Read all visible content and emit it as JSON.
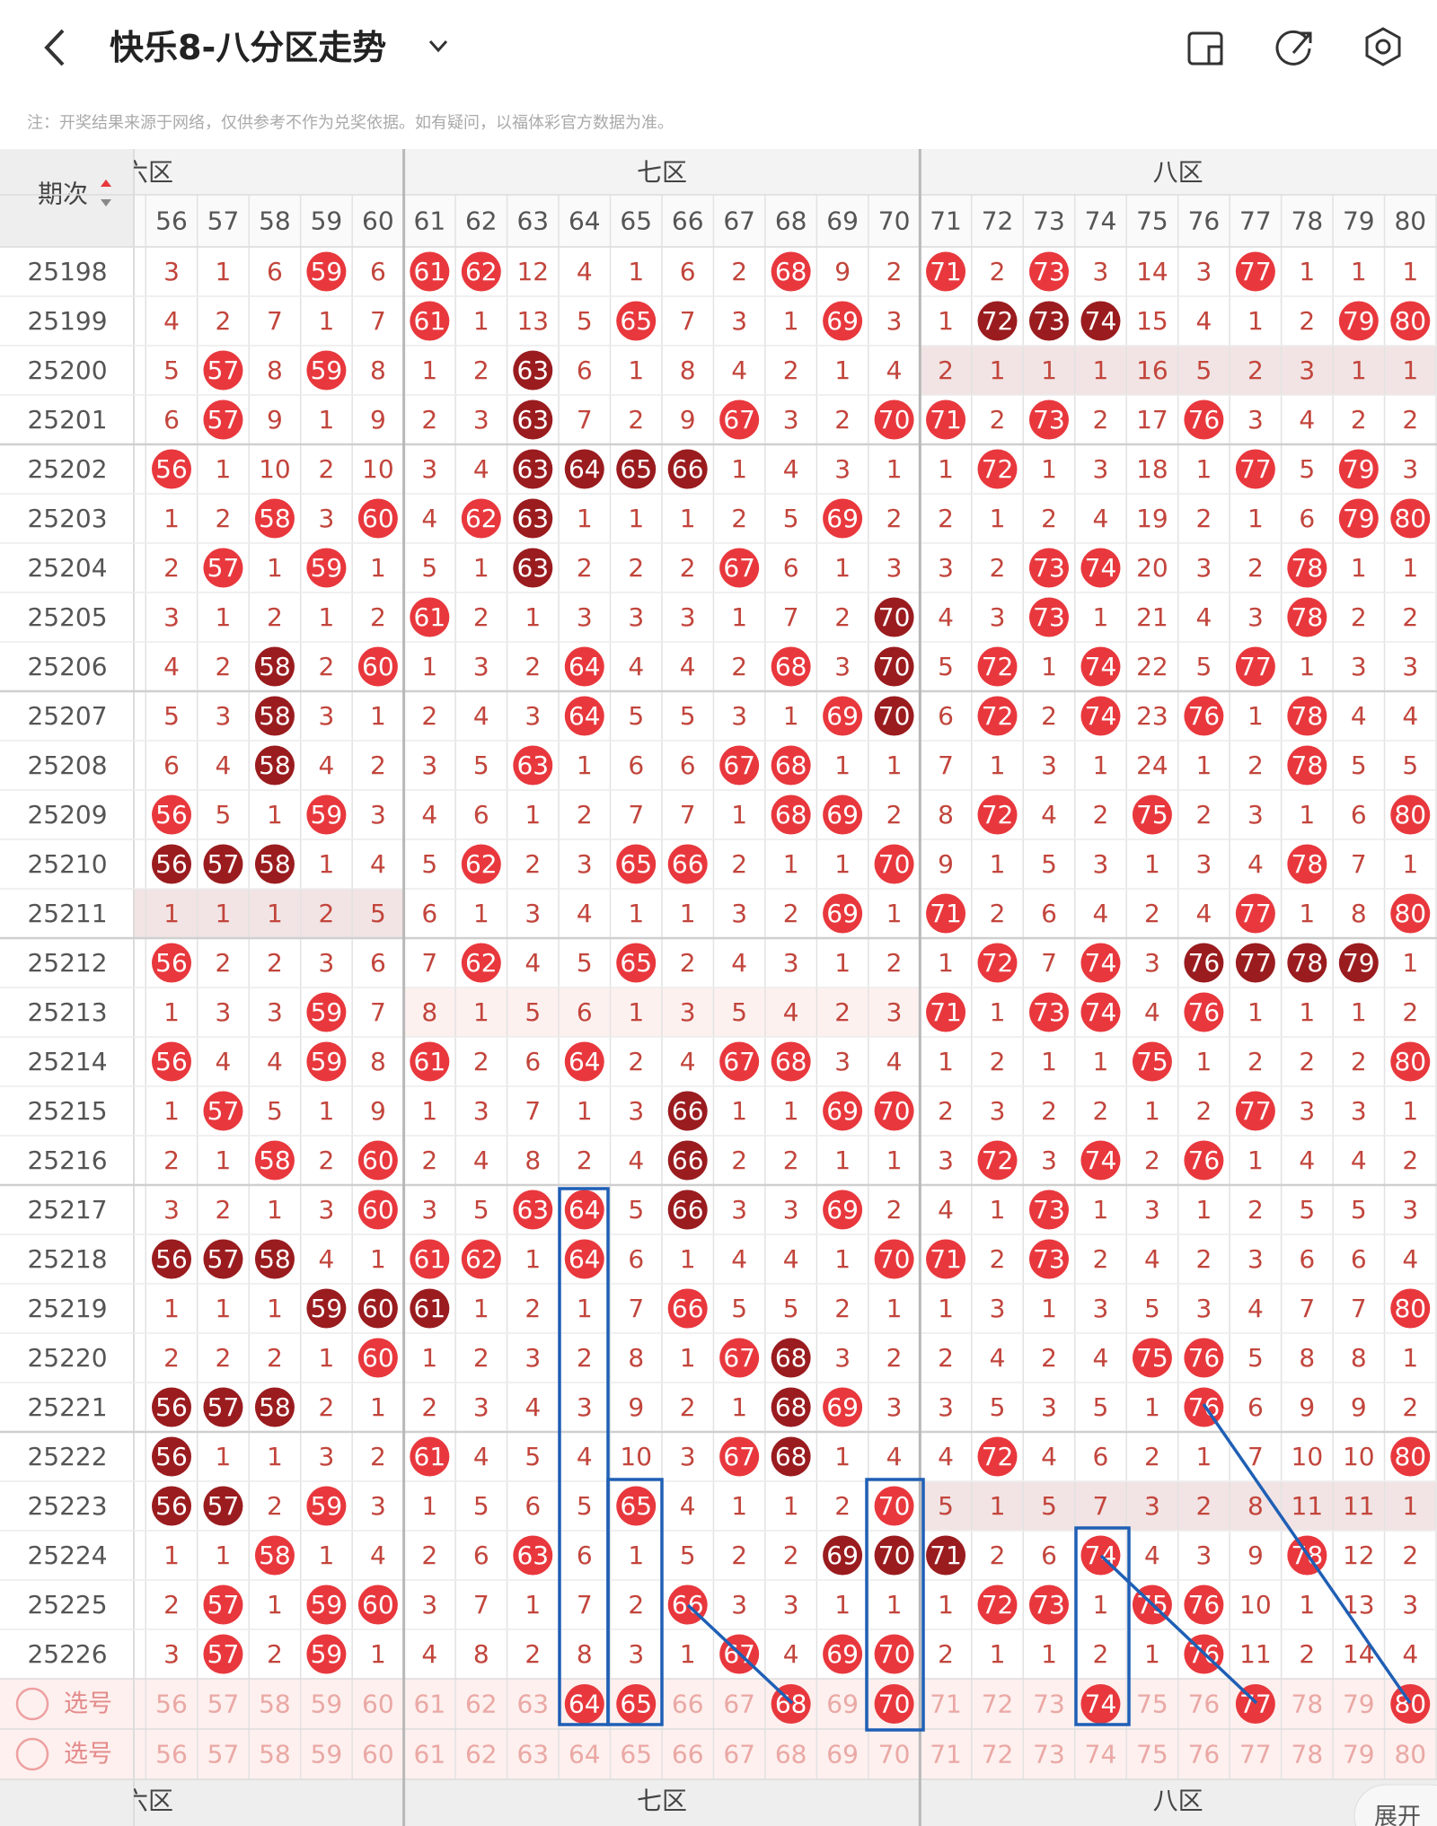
{
  "header": {
    "title": "快乐8-八分区走势",
    "note": "注：开奖结果来源于网络，仅供参考不作为兑奖依据。如有疑问，以福体彩官方数据为准。"
  },
  "table": {
    "period_header": "期次",
    "zones": [
      "六区",
      "七区",
      "八区"
    ],
    "columns": [
      56,
      57,
      58,
      59,
      60,
      61,
      62,
      63,
      64,
      65,
      66,
      67,
      68,
      69,
      70,
      71,
      72,
      73,
      74,
      75,
      76,
      77,
      78,
      79,
      80
    ],
    "rows": [
      {
        "period": "25198",
        "values": [
          3,
          1,
          6,
          59,
          6,
          61,
          62,
          12,
          4,
          1,
          6,
          2,
          68,
          9,
          2,
          71,
          2,
          73,
          3,
          14,
          3,
          77,
          1,
          1,
          1
        ]
      },
      {
        "period": "25199",
        "values": [
          4,
          2,
          7,
          1,
          7,
          61,
          1,
          13,
          5,
          65,
          7,
          3,
          1,
          69,
          3,
          1,
          72,
          73,
          74,
          15,
          4,
          1,
          2,
          79,
          80
        ],
        "dark": [
          72,
          73,
          74
        ]
      },
      {
        "period": "25200",
        "values": [
          5,
          57,
          8,
          59,
          8,
          1,
          2,
          63,
          6,
          1,
          8,
          4,
          2,
          1,
          4,
          2,
          1,
          1,
          1,
          16,
          5,
          2,
          3,
          1,
          1
        ],
        "dark": [
          63
        ],
        "shaded_zone": 2
      },
      {
        "period": "25201",
        "values": [
          6,
          57,
          9,
          1,
          9,
          2,
          3,
          63,
          7,
          2,
          9,
          67,
          3,
          2,
          70,
          71,
          2,
          73,
          2,
          17,
          76,
          3,
          4,
          2,
          2
        ],
        "dark": [
          63
        ]
      },
      {
        "period": "25202",
        "values": [
          56,
          1,
          10,
          2,
          10,
          3,
          4,
          63,
          64,
          65,
          66,
          1,
          4,
          3,
          1,
          1,
          72,
          1,
          3,
          18,
          1,
          77,
          5,
          79,
          3
        ],
        "dark": [
          63,
          64,
          65,
          66
        ]
      },
      {
        "period": "25203",
        "values": [
          1,
          2,
          58,
          3,
          60,
          4,
          62,
          63,
          1,
          1,
          1,
          2,
          5,
          69,
          2,
          2,
          1,
          2,
          4,
          19,
          2,
          1,
          6,
          79,
          80
        ],
        "dark": [
          63
        ]
      },
      {
        "period": "25204",
        "values": [
          2,
          57,
          1,
          59,
          1,
          5,
          1,
          63,
          2,
          2,
          2,
          67,
          6,
          1,
          3,
          3,
          2,
          73,
          74,
          20,
          3,
          2,
          78,
          1,
          1
        ],
        "dark": [
          63
        ]
      },
      {
        "period": "25205",
        "values": [
          3,
          1,
          2,
          1,
          2,
          61,
          2,
          1,
          3,
          3,
          3,
          1,
          7,
          2,
          70,
          4,
          3,
          73,
          1,
          21,
          4,
          3,
          78,
          2,
          2
        ],
        "dark": [
          70
        ]
      },
      {
        "period": "25206",
        "values": [
          4,
          2,
          58,
          2,
          60,
          1,
          3,
          2,
          64,
          4,
          4,
          2,
          68,
          3,
          70,
          5,
          72,
          1,
          74,
          22,
          5,
          77,
          1,
          3,
          3
        ],
        "dark": [
          58,
          70
        ]
      },
      {
        "period": "25207",
        "values": [
          5,
          3,
          58,
          3,
          1,
          2,
          4,
          3,
          64,
          5,
          5,
          3,
          1,
          69,
          70,
          6,
          72,
          2,
          74,
          23,
          76,
          1,
          78,
          4,
          4
        ],
        "dark": [
          58,
          70
        ]
      },
      {
        "period": "25208",
        "values": [
          6,
          4,
          58,
          4,
          2,
          3,
          5,
          63,
          1,
          6,
          6,
          67,
          68,
          1,
          1,
          7,
          1,
          3,
          1,
          24,
          1,
          2,
          78,
          5,
          5
        ],
        "dark": [
          58
        ]
      },
      {
        "period": "25209",
        "values": [
          56,
          5,
          1,
          59,
          3,
          4,
          6,
          1,
          2,
          7,
          7,
          1,
          68,
          69,
          2,
          8,
          72,
          4,
          2,
          75,
          2,
          3,
          1,
          6,
          80
        ]
      },
      {
        "period": "25210",
        "values": [
          56,
          57,
          58,
          1,
          4,
          5,
          62,
          2,
          3,
          65,
          66,
          2,
          1,
          1,
          70,
          9,
          1,
          5,
          3,
          1,
          3,
          4,
          78,
          7,
          1
        ],
        "dark": [
          56,
          57,
          58
        ]
      },
      {
        "period": "25211",
        "values": [
          1,
          1,
          1,
          2,
          5,
          6,
          1,
          3,
          4,
          1,
          1,
          3,
          2,
          69,
          1,
          71,
          2,
          6,
          4,
          2,
          4,
          77,
          1,
          8,
          80
        ],
        "shaded_zone": 0
      },
      {
        "period": "25212",
        "values": [
          56,
          2,
          2,
          3,
          6,
          7,
          62,
          4,
          5,
          65,
          2,
          4,
          3,
          1,
          2,
          1,
          72,
          7,
          74,
          3,
          76,
          77,
          78,
          79,
          1
        ],
        "dark": [
          76,
          77,
          78,
          79
        ]
      },
      {
        "period": "25213",
        "values": [
          1,
          3,
          3,
          59,
          7,
          8,
          1,
          5,
          6,
          1,
          3,
          5,
          4,
          2,
          3,
          71,
          1,
          73,
          74,
          4,
          76,
          1,
          1,
          1,
          2
        ],
        "shaded_zone": 1
      },
      {
        "period": "25214",
        "values": [
          56,
          4,
          4,
          59,
          8,
          61,
          2,
          6,
          64,
          2,
          4,
          67,
          68,
          3,
          4,
          1,
          2,
          1,
          1,
          75,
          1,
          2,
          2,
          2,
          80
        ]
      },
      {
        "period": "25215",
        "values": [
          1,
          57,
          5,
          1,
          9,
          1,
          3,
          7,
          1,
          3,
          66,
          1,
          1,
          69,
          70,
          2,
          3,
          2,
          2,
          1,
          2,
          77,
          3,
          3,
          1
        ],
        "dark": [
          66
        ]
      },
      {
        "period": "25216",
        "values": [
          2,
          1,
          58,
          2,
          60,
          2,
          4,
          8,
          2,
          4,
          66,
          2,
          2,
          1,
          1,
          3,
          72,
          3,
          74,
          2,
          76,
          1,
          4,
          4,
          2
        ],
        "dark": [
          66
        ]
      },
      {
        "period": "25217",
        "values": [
          3,
          2,
          1,
          3,
          60,
          3,
          5,
          63,
          64,
          5,
          66,
          3,
          3,
          69,
          2,
          4,
          1,
          73,
          1,
          3,
          1,
          2,
          5,
          5,
          3
        ],
        "dark": [
          66
        ]
      },
      {
        "period": "25218",
        "values": [
          56,
          57,
          58,
          4,
          1,
          61,
          62,
          1,
          64,
          6,
          1,
          4,
          4,
          1,
          70,
          71,
          2,
          73,
          2,
          4,
          2,
          3,
          6,
          6,
          4
        ],
        "dark": [
          56,
          57,
          58
        ]
      },
      {
        "period": "25219",
        "values": [
          1,
          1,
          1,
          59,
          60,
          61,
          1,
          2,
          1,
          7,
          66,
          5,
          5,
          2,
          1,
          1,
          3,
          1,
          3,
          5,
          3,
          4,
          7,
          7,
          80
        ],
        "dark": [
          59,
          60,
          61
        ]
      },
      {
        "period": "25220",
        "values": [
          2,
          2,
          2,
          1,
          60,
          1,
          2,
          3,
          2,
          8,
          1,
          67,
          68,
          3,
          2,
          2,
          4,
          2,
          4,
          75,
          76,
          5,
          8,
          8,
          1
        ],
        "dark": [
          68
        ]
      },
      {
        "period": "25221",
        "values": [
          56,
          57,
          58,
          2,
          1,
          2,
          3,
          4,
          3,
          9,
          2,
          1,
          68,
          69,
          3,
          3,
          5,
          3,
          5,
          1,
          76,
          6,
          9,
          9,
          2
        ],
        "dark": [
          56,
          57,
          58,
          68
        ]
      },
      {
        "period": "25222",
        "values": [
          56,
          1,
          1,
          3,
          2,
          61,
          4,
          5,
          4,
          10,
          3,
          67,
          68,
          1,
          4,
          4,
          72,
          4,
          6,
          2,
          1,
          7,
          10,
          10,
          80
        ],
        "dark": [
          56,
          68
        ]
      },
      {
        "period": "25223",
        "values": [
          56,
          57,
          2,
          59,
          3,
          1,
          5,
          6,
          5,
          65,
          4,
          1,
          1,
          2,
          70,
          5,
          1,
          5,
          7,
          3,
          2,
          8,
          11,
          11,
          1
        ],
        "dark": [
          56,
          57
        ],
        "shaded_zone": 2
      },
      {
        "period": "25224",
        "values": [
          1,
          1,
          58,
          1,
          4,
          2,
          6,
          63,
          6,
          1,
          5,
          2,
          2,
          69,
          70,
          71,
          2,
          6,
          74,
          4,
          3,
          9,
          78,
          12,
          2
        ],
        "dark": [
          69,
          70,
          71
        ]
      },
      {
        "period": "25225",
        "values": [
          2,
          57,
          1,
          59,
          60,
          3,
          7,
          1,
          7,
          2,
          66,
          3,
          3,
          1,
          1,
          1,
          72,
          73,
          1,
          75,
          76,
          10,
          1,
          13,
          3
        ]
      },
      {
        "period": "25226",
        "values": [
          3,
          57,
          2,
          59,
          1,
          4,
          8,
          2,
          8,
          3,
          1,
          67,
          4,
          69,
          70,
          2,
          1,
          1,
          2,
          1,
          76,
          11,
          2,
          14,
          4
        ]
      }
    ],
    "select_rows": [
      {
        "label": "选号",
        "picked": [
          64,
          65,
          68,
          70,
          74,
          77,
          80
        ]
      },
      {
        "label": "选号"
      }
    ],
    "expand_button": "展开"
  }
}
